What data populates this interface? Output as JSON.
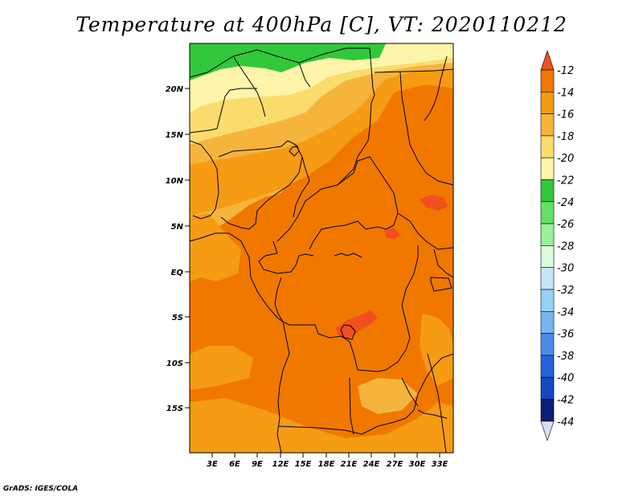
{
  "title": "Temperature at 400hPa [C], VT: 2020110212",
  "credit": "GrADS: IGES/COLA",
  "map": {
    "lon_range": [
      0,
      34
    ],
    "lat_range": [
      -20,
      25
    ],
    "x_ticks": [
      "3E",
      "6E",
      "9E",
      "12E",
      "15E",
      "18E",
      "21E",
      "24E",
      "27E",
      "30E",
      "33E"
    ],
    "y_ticks": [
      "20N",
      "15N",
      "10N",
      "5N",
      "EQ",
      "5S",
      "10S",
      "15S"
    ]
  },
  "legend": {
    "labels": [
      "-12",
      "-14",
      "-16",
      "-18",
      "-20",
      "-22",
      "-24",
      "-26",
      "-28",
      "-30",
      "-32",
      "-34",
      "-36",
      "-38",
      "-40",
      "-42",
      "-44"
    ],
    "colors": [
      "#f0501e",
      "#f07800",
      "#f59b14",
      "#f5b43c",
      "#fadc6e",
      "#fff5aa",
      "#32c83c",
      "#64e164",
      "#9bf09b",
      "#dcfadc",
      "#c3e6f5",
      "#96d2f5",
      "#78b4f0",
      "#4b8ceb",
      "#2364dc",
      "#1448c3",
      "#0a1e78",
      "#dcdcf5"
    ]
  }
}
